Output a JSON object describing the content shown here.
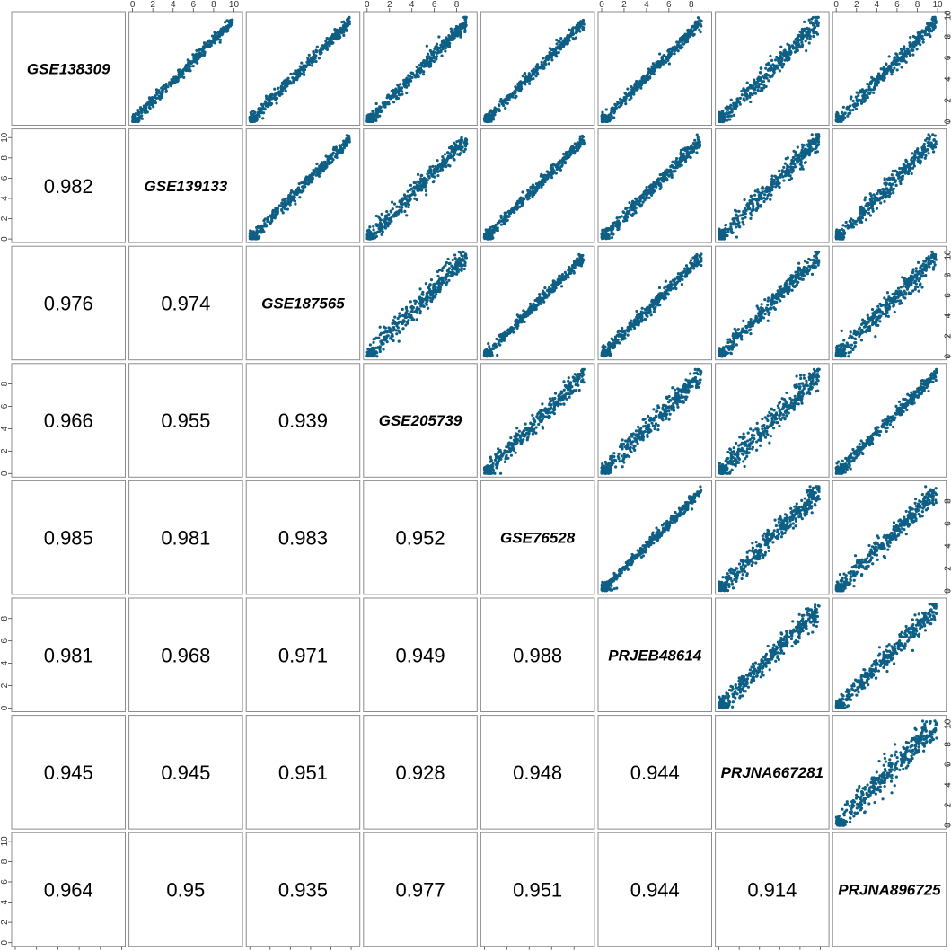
{
  "chart_data": {
    "type": "scatter",
    "plot_kind": "scatterplot matrix with correlation coefficients",
    "point_color": "#0e5f85",
    "datasets": [
      "GSE138309",
      "GSE139133",
      "GSE187565",
      "GSE205739",
      "GSE76528",
      "PRJEB48614",
      "PRJNA667281",
      "PRJNA896725"
    ],
    "axis_ranges": [
      [
        0,
        10
      ],
      [
        0,
        10.5
      ],
      [
        0,
        10.5
      ],
      [
        0,
        9.5
      ],
      [
        0,
        9.5
      ],
      [
        0,
        9.5
      ],
      [
        0,
        10.5
      ],
      [
        0,
        10.5
      ]
    ],
    "tick_values": [
      [
        0,
        2,
        4,
        6,
        8,
        10
      ],
      [
        0,
        2,
        4,
        6,
        8,
        10
      ],
      [
        0,
        2,
        4,
        6,
        8,
        10
      ],
      [
        0,
        2,
        4,
        6,
        8
      ],
      [
        0,
        2,
        4,
        6,
        8
      ],
      [
        0,
        2,
        4,
        6,
        8
      ],
      [
        0,
        2,
        4,
        6,
        8,
        10
      ],
      [
        0,
        2,
        4,
        6,
        8,
        10
      ]
    ],
    "correlations": [
      [
        "",
        "",
        "",
        "",
        "",
        "",
        "",
        ""
      ],
      [
        "0.982",
        "",
        "",
        "",
        "",
        "",
        "",
        ""
      ],
      [
        "0.976",
        "0.974",
        "",
        "",
        "",
        "",
        "",
        ""
      ],
      [
        "0.966",
        "0.955",
        "0.939",
        "",
        "",
        "",
        "",
        ""
      ],
      [
        "0.985",
        "0.981",
        "0.983",
        "0.952",
        "",
        "",
        "",
        ""
      ],
      [
        "0.981",
        "0.968",
        "0.971",
        "0.949",
        "0.988",
        "",
        "",
        ""
      ],
      [
        "0.945",
        "0.945",
        "0.951",
        "0.928",
        "0.948",
        "0.944",
        "",
        ""
      ],
      [
        "0.964",
        "0.95",
        "0.935",
        "0.977",
        "0.951",
        "0.944",
        "0.914",
        ""
      ]
    ],
    "grid": false
  }
}
